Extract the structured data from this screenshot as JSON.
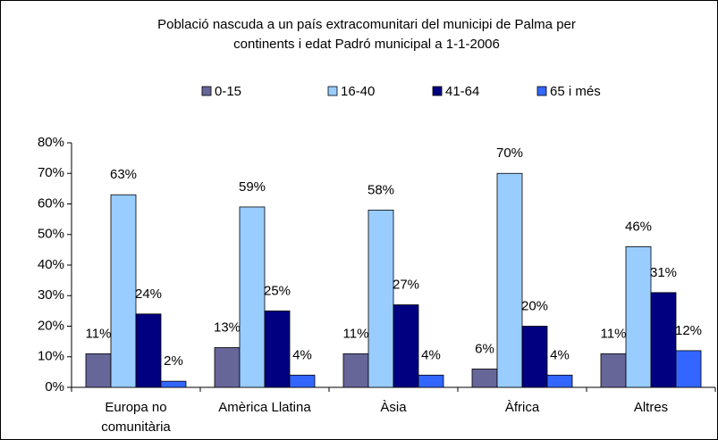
{
  "chart_data": {
    "type": "bar",
    "title": [
      "Població nascuda a un país extracomunitari del municipi de Palma per",
      "continents i edat Padró municipal a 1-1-2006"
    ],
    "categories": [
      "Europa no comunitària",
      "Amèrica Llatina",
      "Àsia",
      "Àfrica",
      "Altres"
    ],
    "series": [
      {
        "name": "0-15",
        "color": "#666699",
        "values": [
          11,
          13,
          11,
          6,
          11
        ],
        "value_labels": [
          "11%",
          "13%",
          "11%",
          "6%",
          "11%"
        ]
      },
      {
        "name": "16-40",
        "color": "#99ccff",
        "values": [
          63,
          59,
          58,
          70,
          46
        ],
        "value_labels": [
          "63%",
          "59%",
          "58%",
          "70%",
          "46%"
        ]
      },
      {
        "name": "41-64",
        "color": "#000080",
        "values": [
          24,
          25,
          27,
          20,
          31
        ],
        "value_labels": [
          "24%",
          "25%",
          "27%",
          "20%",
          "31%"
        ]
      },
      {
        "name": "65 i més",
        "color": "#3366ff",
        "values": [
          2,
          4,
          4,
          4,
          12
        ],
        "value_labels": [
          "2%",
          "4%",
          "4%",
          "4%",
          "12%"
        ]
      }
    ],
    "ylim": [
      0,
      80
    ],
    "yticks": [
      {
        "value": 0,
        "label": "0%"
      },
      {
        "value": 10,
        "label": "10%"
      },
      {
        "value": 20,
        "label": "20%"
      },
      {
        "value": 30,
        "label": "30%"
      },
      {
        "value": 40,
        "label": "40%"
      },
      {
        "value": 50,
        "label": "50%"
      },
      {
        "value": 60,
        "label": "60%"
      },
      {
        "value": 70,
        "label": "70%"
      },
      {
        "value": 80,
        "label": "80%"
      }
    ],
    "legend": "top"
  }
}
